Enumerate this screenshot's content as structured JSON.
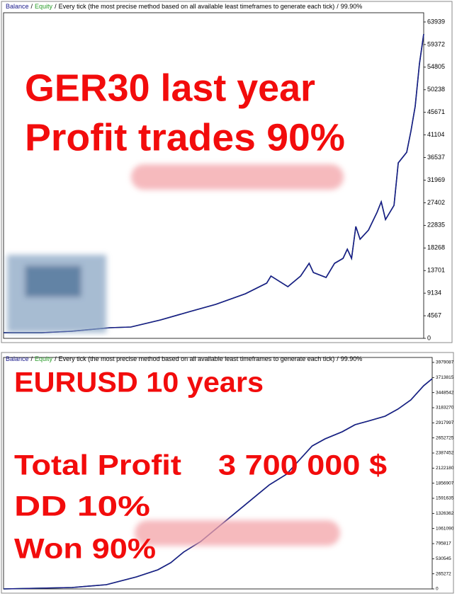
{
  "chart_data": [
    {
      "type": "line",
      "separator": "/",
      "mode": "Every tick (the most precise method based on all available least timeframes to generate each tick)",
      "quality": "99.90%",
      "annotations": [
        "GER30   last   year",
        "Profit   trades   90%"
      ],
      "x": [
        0,
        9,
        16,
        25,
        30,
        37,
        44,
        50,
        57,
        62,
        63,
        67,
        70,
        72,
        73,
        76,
        78,
        80,
        81,
        82,
        83,
        84,
        86,
        88,
        89,
        90,
        92,
        93,
        95,
        96,
        97,
        98,
        99
      ],
      "series": [
        {
          "name": "Equity",
          "color": "#2a9d2a",
          "values": [
            1144,
            1144,
            1430,
            2145,
            2288,
            3718,
            5434,
            6864,
            9009,
            11154,
            12584,
            10439,
            12584,
            15158,
            13299,
            12298,
            15158,
            16159,
            18018,
            16159,
            22594,
            20020,
            21879,
            25454,
            27599,
            24024,
            26884,
            35464,
            37609,
            41899,
            46904,
            55484,
            61490
          ]
        },
        {
          "name": "Balance",
          "color": "#1a1a8c",
          "values": [
            1144,
            1144,
            1430,
            2145,
            2288,
            3718,
            5434,
            6864,
            9009,
            11154,
            12584,
            10439,
            12584,
            15158,
            13299,
            12298,
            15158,
            16159,
            18018,
            16159,
            22594,
            20020,
            21879,
            25454,
            27599,
            24024,
            26884,
            35464,
            37609,
            41899,
            46904,
            55484,
            61490
          ]
        }
      ],
      "xlim": [
        0,
        99
      ],
      "ylim": [
        0,
        65800
      ],
      "yticks": [
        0,
        4567,
        9134,
        13701,
        18268,
        22835,
        27402,
        31969,
        36537,
        41104,
        45671,
        50238,
        54805,
        59372,
        63939
      ]
    },
    {
      "type": "line",
      "separator": "/",
      "mode": "Every tick (the most precise method based on all available least timeframes to generate each tick)",
      "quality": "99.90%",
      "annotations": [
        "EURUSD  10   years",
        "Total   Profit",
        "3  700 000 $",
        "DD       10%",
        "Won   90%"
      ],
      "x": [
        0,
        16,
        24,
        31,
        36,
        39,
        42,
        46,
        49,
        52,
        56,
        59,
        62,
        66,
        69,
        72,
        75,
        79,
        82,
        85,
        89,
        92,
        95,
        98,
        100
      ],
      "series": [
        {
          "name": "Equity",
          "color": "#2a9d2a",
          "values": [
            0,
            24870,
            74610,
            211395,
            335745,
            460095,
            646620,
            833145,
            1019670,
            1206195,
            1454895,
            1641420,
            1827945,
            2014470,
            2263170,
            2511870,
            2636220,
            2760570,
            2884920,
            2947095,
            3034140,
            3158490,
            3320145,
            3568845,
            3693195
          ]
        },
        {
          "name": "Balance",
          "color": "#1a1a8c",
          "values": [
            0,
            24870,
            74610,
            211395,
            335745,
            460095,
            646620,
            833145,
            1019670,
            1206195,
            1454895,
            1641420,
            1827945,
            2014470,
            2263170,
            2511870,
            2636220,
            2760570,
            2884920,
            2947095,
            3034140,
            3158490,
            3320145,
            3568845,
            3693195
          ]
        }
      ],
      "xlim": [
        0,
        100
      ],
      "ylim": [
        0,
        4066132
      ],
      "yticks": [
        0,
        265272,
        530545,
        795817,
        1061090,
        1326362,
        1591635,
        1856907,
        2122180,
        2387452,
        2652725,
        2917997,
        3183270,
        3448542,
        3713815,
        3979087
      ]
    }
  ]
}
